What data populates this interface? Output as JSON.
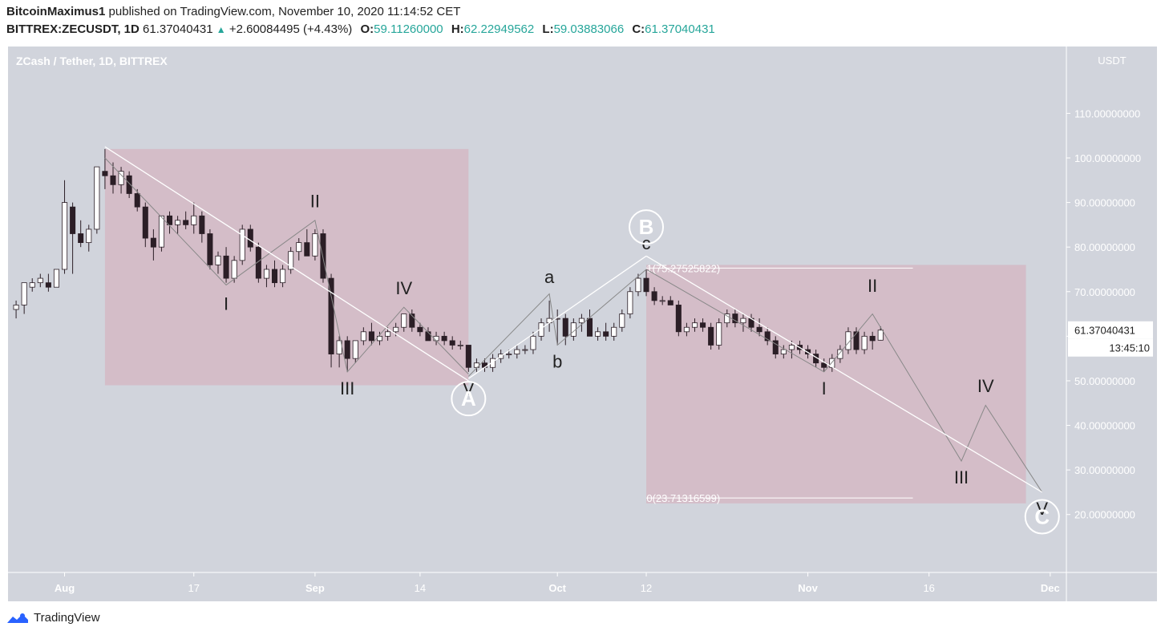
{
  "header": {
    "publisher": "BitcoinMaximus1",
    "published_text": " published on TradingView.com, November 10, 2020 11:14:52 CET",
    "symbol": "BITTREX:ZECUSDT, 1D",
    "last": "61.37040431",
    "change": "+2.60084495 (+4.43%)",
    "o_label": "O:",
    "o": "59.11260000",
    "h_label": "H:",
    "h": "62.22949562",
    "l_label": "L:",
    "l": "59.03883066",
    "c_label": "C:",
    "c": "61.37040431"
  },
  "footer": {
    "brand": "TradingView"
  },
  "colors": {
    "plot_bg": "#d1d4dc",
    "zone": "#d5b8c4",
    "up_candle": "#ffffff",
    "down_candle": "#2b1e26",
    "wick": "#2b1e26",
    "trendline": "#ffffff",
    "wave_line": "#888888",
    "price_label_bg": "#ffffff",
    "accent_green": "#26a69a"
  },
  "chart_data": {
    "type": "candlestick",
    "title": "ZCash / Tether, 1D, BITTREX",
    "y_axis_label": "USDT",
    "ylim": [
      7,
      125
    ],
    "y_ticks": [
      20,
      30,
      40,
      50,
      60,
      70,
      80,
      90,
      100,
      110
    ],
    "y_tick_labels": [
      "20.00000000",
      "30.00000000",
      "40.00000000",
      "50.00000000",
      "60.00000000",
      "70.00000000",
      "80.00000000",
      "90.00000000",
      "100.00000000",
      "110.00000000"
    ],
    "x_range": [
      "2020-07-25",
      "2020-12-03"
    ],
    "x_ticks": [
      {
        "date": "2020-08-01",
        "label": "Aug",
        "bold": true
      },
      {
        "date": "2020-08-17",
        "label": "17",
        "bold": false
      },
      {
        "date": "2020-09-01",
        "label": "Sep",
        "bold": true
      },
      {
        "date": "2020-09-14",
        "label": "14",
        "bold": false
      },
      {
        "date": "2020-10-01",
        "label": "Oct",
        "bold": true
      },
      {
        "date": "2020-10-12",
        "label": "12",
        "bold": false
      },
      {
        "date": "2020-11-01",
        "label": "Nov",
        "bold": true
      },
      {
        "date": "2020-11-16",
        "label": "16",
        "bold": false
      },
      {
        "date": "2020-12-01",
        "label": "Dec",
        "bold": true
      }
    ],
    "current_price_label": "61.37040431",
    "countdown_label": "13:45:10",
    "current_price": 61.37,
    "candles": [
      {
        "d": "2020-07-26",
        "o": 66,
        "h": 68,
        "l": 64,
        "c": 67
      },
      {
        "d": "2020-07-27",
        "o": 67,
        "h": 71,
        "l": 65,
        "c": 72
      },
      {
        "d": "2020-07-28",
        "o": 71,
        "h": 73,
        "l": 70,
        "c": 72
      },
      {
        "d": "2020-07-29",
        "o": 72,
        "h": 74,
        "l": 71,
        "c": 73
      },
      {
        "d": "2020-07-30",
        "o": 72,
        "h": 74,
        "l": 70,
        "c": 71
      },
      {
        "d": "2020-07-31",
        "o": 71,
        "h": 75,
        "l": 71,
        "c": 75
      },
      {
        "d": "2020-08-01",
        "o": 75,
        "h": 95,
        "l": 74,
        "c": 90
      },
      {
        "d": "2020-08-02",
        "o": 89,
        "h": 90,
        "l": 74,
        "c": 83
      },
      {
        "d": "2020-08-03",
        "o": 83,
        "h": 86,
        "l": 80,
        "c": 81
      },
      {
        "d": "2020-08-04",
        "o": 81,
        "h": 85,
        "l": 79,
        "c": 84
      },
      {
        "d": "2020-08-05",
        "o": 84,
        "h": 98,
        "l": 83,
        "c": 98
      },
      {
        "d": "2020-08-06",
        "o": 97,
        "h": 102,
        "l": 93,
        "c": 96
      },
      {
        "d": "2020-08-07",
        "o": 96,
        "h": 99,
        "l": 92,
        "c": 94
      },
      {
        "d": "2020-08-08",
        "o": 94,
        "h": 98,
        "l": 92,
        "c": 97
      },
      {
        "d": "2020-08-09",
        "o": 96,
        "h": 97,
        "l": 91,
        "c": 92
      },
      {
        "d": "2020-08-10",
        "o": 92,
        "h": 93,
        "l": 88,
        "c": 89
      },
      {
        "d": "2020-08-11",
        "o": 89,
        "h": 90,
        "l": 80,
        "c": 82
      },
      {
        "d": "2020-08-12",
        "o": 82,
        "h": 84,
        "l": 77,
        "c": 80
      },
      {
        "d": "2020-08-13",
        "o": 80,
        "h": 87,
        "l": 79,
        "c": 87
      },
      {
        "d": "2020-08-14",
        "o": 87,
        "h": 88,
        "l": 83,
        "c": 85
      },
      {
        "d": "2020-08-15",
        "o": 85,
        "h": 87,
        "l": 83,
        "c": 86
      },
      {
        "d": "2020-08-16",
        "o": 86,
        "h": 88,
        "l": 84,
        "c": 85
      },
      {
        "d": "2020-08-17",
        "o": 85,
        "h": 90,
        "l": 83,
        "c": 87
      },
      {
        "d": "2020-08-18",
        "o": 87,
        "h": 88,
        "l": 81,
        "c": 83
      },
      {
        "d": "2020-08-19",
        "o": 83,
        "h": 84,
        "l": 75,
        "c": 76
      },
      {
        "d": "2020-08-20",
        "o": 76,
        "h": 79,
        "l": 74,
        "c": 78
      },
      {
        "d": "2020-08-21",
        "o": 78,
        "h": 80,
        "l": 72,
        "c": 73
      },
      {
        "d": "2020-08-22",
        "o": 73,
        "h": 78,
        "l": 72,
        "c": 77
      },
      {
        "d": "2020-08-23",
        "o": 77,
        "h": 85,
        "l": 76,
        "c": 84
      },
      {
        "d": "2020-08-24",
        "o": 84,
        "h": 85,
        "l": 79,
        "c": 80
      },
      {
        "d": "2020-08-25",
        "o": 80,
        "h": 81,
        "l": 72,
        "c": 73
      },
      {
        "d": "2020-08-26",
        "o": 73,
        "h": 76,
        "l": 71,
        "c": 75
      },
      {
        "d": "2020-08-27",
        "o": 75,
        "h": 77,
        "l": 71,
        "c": 72
      },
      {
        "d": "2020-08-28",
        "o": 72,
        "h": 76,
        "l": 71,
        "c": 75
      },
      {
        "d": "2020-08-29",
        "o": 75,
        "h": 80,
        "l": 74,
        "c": 79
      },
      {
        "d": "2020-08-30",
        "o": 79,
        "h": 82,
        "l": 77,
        "c": 81
      },
      {
        "d": "2020-08-31",
        "o": 81,
        "h": 84,
        "l": 78,
        "c": 78
      },
      {
        "d": "2020-09-01",
        "o": 78,
        "h": 84,
        "l": 77,
        "c": 83
      },
      {
        "d": "2020-09-02",
        "o": 83,
        "h": 84,
        "l": 72,
        "c": 73
      },
      {
        "d": "2020-09-03",
        "o": 73,
        "h": 74,
        "l": 53,
        "c": 56
      },
      {
        "d": "2020-09-04",
        "o": 56,
        "h": 60,
        "l": 53,
        "c": 59
      },
      {
        "d": "2020-09-05",
        "o": 59,
        "h": 60,
        "l": 52,
        "c": 55
      },
      {
        "d": "2020-09-06",
        "o": 55,
        "h": 59,
        "l": 54,
        "c": 59
      },
      {
        "d": "2020-09-07",
        "o": 59,
        "h": 62,
        "l": 58,
        "c": 61
      },
      {
        "d": "2020-09-08",
        "o": 61,
        "h": 63,
        "l": 58,
        "c": 59
      },
      {
        "d": "2020-09-09",
        "o": 59,
        "h": 61,
        "l": 58,
        "c": 60
      },
      {
        "d": "2020-09-10",
        "o": 60,
        "h": 62,
        "l": 59,
        "c": 61
      },
      {
        "d": "2020-09-11",
        "o": 61,
        "h": 63,
        "l": 60,
        "c": 62
      },
      {
        "d": "2020-09-12",
        "o": 62,
        "h": 65,
        "l": 61,
        "c": 65
      },
      {
        "d": "2020-09-13",
        "o": 65,
        "h": 66,
        "l": 61,
        "c": 62
      },
      {
        "d": "2020-09-14",
        "o": 62,
        "h": 63,
        "l": 60,
        "c": 61
      },
      {
        "d": "2020-09-15",
        "o": 61,
        "h": 62,
        "l": 59,
        "c": 59
      },
      {
        "d": "2020-09-16",
        "o": 59,
        "h": 61,
        "l": 58,
        "c": 60
      },
      {
        "d": "2020-09-17",
        "o": 60,
        "h": 61,
        "l": 58,
        "c": 59
      },
      {
        "d": "2020-09-18",
        "o": 59,
        "h": 60,
        "l": 57,
        "c": 58
      },
      {
        "d": "2020-09-19",
        "o": 58,
        "h": 59,
        "l": 57,
        "c": 58
      },
      {
        "d": "2020-09-20",
        "o": 58,
        "h": 58,
        "l": 52,
        "c": 53
      },
      {
        "d": "2020-09-21",
        "o": 53,
        "h": 55,
        "l": 52,
        "c": 54
      },
      {
        "d": "2020-09-22",
        "o": 54,
        "h": 55,
        "l": 52,
        "c": 53
      },
      {
        "d": "2020-09-23",
        "o": 53,
        "h": 56,
        "l": 52,
        "c": 55
      },
      {
        "d": "2020-09-24",
        "o": 55,
        "h": 57,
        "l": 54,
        "c": 56
      },
      {
        "d": "2020-09-25",
        "o": 56,
        "h": 57,
        "l": 55,
        "c": 56
      },
      {
        "d": "2020-09-26",
        "o": 56,
        "h": 58,
        "l": 55,
        "c": 57
      },
      {
        "d": "2020-09-27",
        "o": 57,
        "h": 58,
        "l": 56,
        "c": 57
      },
      {
        "d": "2020-09-28",
        "o": 57,
        "h": 61,
        "l": 56,
        "c": 60
      },
      {
        "d": "2020-09-29",
        "o": 60,
        "h": 64,
        "l": 59,
        "c": 63
      },
      {
        "d": "2020-09-30",
        "o": 63,
        "h": 68,
        "l": 61,
        "c": 64
      },
      {
        "d": "2020-10-01",
        "o": 64,
        "h": 66,
        "l": 58,
        "c": 64
      },
      {
        "d": "2020-10-02",
        "o": 64,
        "h": 65,
        "l": 58,
        "c": 60
      },
      {
        "d": "2020-10-03",
        "o": 60,
        "h": 64,
        "l": 59,
        "c": 63
      },
      {
        "d": "2020-10-04",
        "o": 63,
        "h": 65,
        "l": 61,
        "c": 64
      },
      {
        "d": "2020-10-05",
        "o": 64,
        "h": 66,
        "l": 60,
        "c": 60
      },
      {
        "d": "2020-10-06",
        "o": 60,
        "h": 62,
        "l": 59,
        "c": 61
      },
      {
        "d": "2020-10-07",
        "o": 61,
        "h": 63,
        "l": 59,
        "c": 60
      },
      {
        "d": "2020-10-08",
        "o": 60,
        "h": 63,
        "l": 59,
        "c": 62
      },
      {
        "d": "2020-10-09",
        "o": 62,
        "h": 66,
        "l": 61,
        "c": 65
      },
      {
        "d": "2020-10-10",
        "o": 65,
        "h": 71,
        "l": 64,
        "c": 70
      },
      {
        "d": "2020-10-11",
        "o": 70,
        "h": 74,
        "l": 69,
        "c": 73
      },
      {
        "d": "2020-10-12",
        "o": 73,
        "h": 75,
        "l": 69,
        "c": 70
      },
      {
        "d": "2020-10-13",
        "o": 70,
        "h": 71,
        "l": 67,
        "c": 68
      },
      {
        "d": "2020-10-14",
        "o": 68,
        "h": 69,
        "l": 67,
        "c": 68
      },
      {
        "d": "2020-10-15",
        "o": 68,
        "h": 69,
        "l": 67,
        "c": 67
      },
      {
        "d": "2020-10-16",
        "o": 67,
        "h": 68,
        "l": 60,
        "c": 61
      },
      {
        "d": "2020-10-17",
        "o": 61,
        "h": 63,
        "l": 60,
        "c": 62
      },
      {
        "d": "2020-10-18",
        "o": 62,
        "h": 64,
        "l": 61,
        "c": 63
      },
      {
        "d": "2020-10-19",
        "o": 63,
        "h": 64,
        "l": 61,
        "c": 62
      },
      {
        "d": "2020-10-20",
        "o": 62,
        "h": 63,
        "l": 57,
        "c": 58
      },
      {
        "d": "2020-10-21",
        "o": 58,
        "h": 64,
        "l": 57,
        "c": 63
      },
      {
        "d": "2020-10-22",
        "o": 63,
        "h": 66,
        "l": 62,
        "c": 65
      },
      {
        "d": "2020-10-23",
        "o": 65,
        "h": 66,
        "l": 62,
        "c": 63
      },
      {
        "d": "2020-10-24",
        "o": 63,
        "h": 65,
        "l": 61,
        "c": 64
      },
      {
        "d": "2020-10-25",
        "o": 64,
        "h": 65,
        "l": 61,
        "c": 62
      },
      {
        "d": "2020-10-26",
        "o": 62,
        "h": 64,
        "l": 60,
        "c": 61
      },
      {
        "d": "2020-10-27",
        "o": 61,
        "h": 62,
        "l": 58,
        "c": 59
      },
      {
        "d": "2020-10-28",
        "o": 59,
        "h": 60,
        "l": 55,
        "c": 56
      },
      {
        "d": "2020-10-29",
        "o": 56,
        "h": 58,
        "l": 55,
        "c": 57
      },
      {
        "d": "2020-10-30",
        "o": 57,
        "h": 59,
        "l": 55,
        "c": 58
      },
      {
        "d": "2020-10-31",
        "o": 58,
        "h": 59,
        "l": 56,
        "c": 57
      },
      {
        "d": "2020-11-01",
        "o": 57,
        "h": 58,
        "l": 55,
        "c": 56
      },
      {
        "d": "2020-11-02",
        "o": 56,
        "h": 57,
        "l": 53,
        "c": 54
      },
      {
        "d": "2020-11-03",
        "o": 54,
        "h": 55,
        "l": 52,
        "c": 53
      },
      {
        "d": "2020-11-04",
        "o": 53,
        "h": 56,
        "l": 52,
        "c": 55
      },
      {
        "d": "2020-11-05",
        "o": 55,
        "h": 58,
        "l": 54,
        "c": 57
      },
      {
        "d": "2020-11-06",
        "o": 57,
        "h": 62,
        "l": 56,
        "c": 61
      },
      {
        "d": "2020-11-07",
        "o": 61,
        "h": 62,
        "l": 56,
        "c": 57
      },
      {
        "d": "2020-11-08",
        "o": 57,
        "h": 61,
        "l": 56,
        "c": 60
      },
      {
        "d": "2020-11-09",
        "o": 60,
        "h": 61,
        "l": 57,
        "c": 59
      },
      {
        "d": "2020-11-10",
        "o": 59.11,
        "h": 62.23,
        "l": 59.04,
        "c": 61.37
      }
    ],
    "zones": [
      {
        "from": "2020-08-06",
        "to": "2020-09-20",
        "top": 102,
        "bottom": 49
      },
      {
        "from": "2020-10-12",
        "to": "2020-11-28",
        "top": 76,
        "bottom": 22.5
      }
    ],
    "fib_levels": [
      {
        "label": "1(75.27525822)",
        "value": 75.28,
        "from": "2020-10-12",
        "to": "2020-11-14"
      },
      {
        "label": "0(23.71316599)",
        "value": 23.71,
        "from": "2020-10-12",
        "to": "2020-11-14"
      }
    ],
    "trendlines": [
      {
        "points": [
          {
            "d": "2020-08-06",
            "v": 102.5
          },
          {
            "d": "2020-09-20",
            "v": 50
          }
        ]
      },
      {
        "points": [
          {
            "d": "2020-09-20",
            "v": 50.5
          },
          {
            "d": "2020-10-12",
            "v": 78
          }
        ]
      },
      {
        "points": [
          {
            "d": "2020-10-12",
            "v": 78
          },
          {
            "d": "2020-11-30",
            "v": 25
          }
        ]
      }
    ],
    "wave_paths": [
      {
        "points": [
          {
            "d": "2020-08-06",
            "v": 100
          },
          {
            "d": "2020-08-21",
            "v": 71.5
          },
          {
            "d": "2020-09-01",
            "v": 86
          },
          {
            "d": "2020-09-05",
            "v": 52
          },
          {
            "d": "2020-09-12",
            "v": 66.5
          },
          {
            "d": "2020-09-20",
            "v": 51.5
          }
        ]
      },
      {
        "points": [
          {
            "d": "2020-09-20",
            "v": 51
          },
          {
            "d": "2020-09-30",
            "v": 69.5
          },
          {
            "d": "2020-10-01",
            "v": 58
          },
          {
            "d": "2020-10-12",
            "v": 75
          }
        ]
      },
      {
        "points": [
          {
            "d": "2020-10-12",
            "v": 75
          },
          {
            "d": "2020-11-03",
            "v": 52
          },
          {
            "d": "2020-11-09",
            "v": 65
          },
          {
            "d": "2020-11-20",
            "v": 32
          },
          {
            "d": "2020-11-23",
            "v": 44.5
          },
          {
            "d": "2020-11-30",
            "v": 25
          }
        ]
      }
    ],
    "annotations": [
      {
        "text": "I",
        "d": "2020-08-21",
        "v": 67,
        "style": "plain"
      },
      {
        "text": "II",
        "d": "2020-09-01",
        "v": 90,
        "style": "plain"
      },
      {
        "text": "III",
        "d": "2020-09-05",
        "v": 48,
        "style": "plain"
      },
      {
        "text": "IV",
        "d": "2020-09-12",
        "v": 70.5,
        "style": "plain"
      },
      {
        "text": "V",
        "d": "2020-09-20",
        "v": 48,
        "style": "plain"
      },
      {
        "text": "a",
        "d": "2020-09-30",
        "v": 73,
        "style": "plain"
      },
      {
        "text": "b",
        "d": "2020-10-01",
        "v": 54,
        "style": "plain"
      },
      {
        "text": "c",
        "d": "2020-10-12",
        "v": 80.5,
        "style": "plain"
      },
      {
        "text": "I",
        "d": "2020-11-03",
        "v": 48,
        "style": "plain"
      },
      {
        "text": "II",
        "d": "2020-11-09",
        "v": 71,
        "style": "plain"
      },
      {
        "text": "III",
        "d": "2020-11-20",
        "v": 28,
        "style": "plain"
      },
      {
        "text": "IV",
        "d": "2020-11-23",
        "v": 48.5,
        "style": "plain"
      },
      {
        "text": "V",
        "d": "2020-11-30",
        "v": 21,
        "style": "plain"
      },
      {
        "text": "A",
        "d": "2020-09-20",
        "v": 46,
        "style": "circle"
      },
      {
        "text": "B",
        "d": "2020-10-12",
        "v": 84.5,
        "style": "circle"
      },
      {
        "text": "C",
        "d": "2020-11-30",
        "v": 19.5,
        "style": "circle"
      }
    ]
  }
}
